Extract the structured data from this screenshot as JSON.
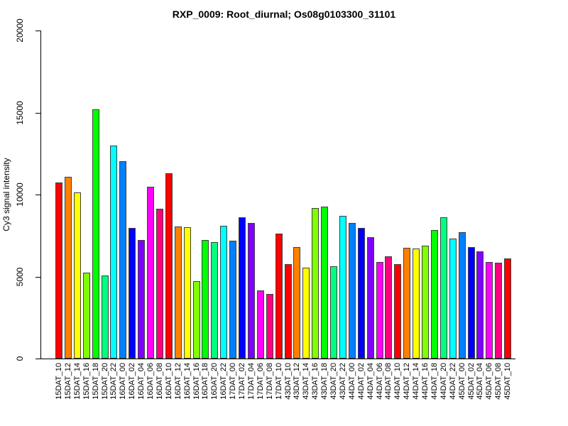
{
  "chart_data": {
    "type": "bar",
    "title": "RXP_0009: Root_diurnal; Os08g0103300_31101",
    "xlabel": "",
    "ylabel": "Cy3 signal intensity",
    "ylim": [
      0,
      20000
    ],
    "yticks": [
      0,
      5000,
      10000,
      15000,
      20000
    ],
    "grid": false,
    "legend": false,
    "background": "#FFFFFF",
    "axis_color": "#000000",
    "bar_border_color": "#404040",
    "bar_color_cycle": [
      "#FF0000",
      "#FF8000",
      "#FFFF00",
      "#80FF00",
      "#00FF00",
      "#00FF80",
      "#00FFFF",
      "#0080FF",
      "#0000FF",
      "#8000FF",
      "#FF00FF",
      "#FF0080"
    ],
    "color_rule": "fill = bar_color_cycle[(index mod color_group_size) mod 12]; cycle restarts for each 25-bar group",
    "color_group_size": 25,
    "categories": [
      "15DAT_10",
      "15DAT_12",
      "15DAT_14",
      "15DAT_16",
      "15DAT_18",
      "15DAT_20",
      "15DAT_22",
      "16DAT_00",
      "16DAT_02",
      "16DAT_04",
      "16DAT_06",
      "16DAT_08",
      "16DAT_10",
      "16DAT_12",
      "16DAT_14",
      "16DAT_16",
      "16DAT_18",
      "16DAT_20",
      "16DAT_22",
      "17DAT_00",
      "17DAT_02",
      "17DAT_04",
      "17DAT_06",
      "17DAT_08",
      "17DAT_10",
      "43DAT_10",
      "43DAT_12",
      "43DAT_14",
      "43DAT_16",
      "43DAT_18",
      "43DAT_20",
      "43DAT_22",
      "44DAT_00",
      "44DAT_02",
      "44DAT_04",
      "44DAT_06",
      "44DAT_08",
      "44DAT_10",
      "44DAT_12",
      "44DAT_14",
      "44DAT_16",
      "44DAT_18",
      "44DAT_20",
      "44DAT_22",
      "45DAT_00",
      "45DAT_02",
      "45DAT_04",
      "45DAT_06",
      "45DAT_08",
      "45DAT_10"
    ],
    "values": [
      10750,
      11100,
      10150,
      5250,
      15200,
      5050,
      13000,
      12050,
      7950,
      7250,
      10500,
      9150,
      11300,
      8050,
      8000,
      4700,
      7250,
      7100,
      8100,
      7200,
      8600,
      8250,
      4150,
      3950,
      7600,
      5750,
      6800,
      5550,
      9200,
      9250,
      5650,
      8700,
      8250,
      7950,
      7400,
      5900,
      6250,
      5750,
      6750,
      6700,
      6900,
      7850,
      8600,
      7300,
      7700,
      6800,
      6550,
      5900,
      5850,
      6100
    ]
  }
}
